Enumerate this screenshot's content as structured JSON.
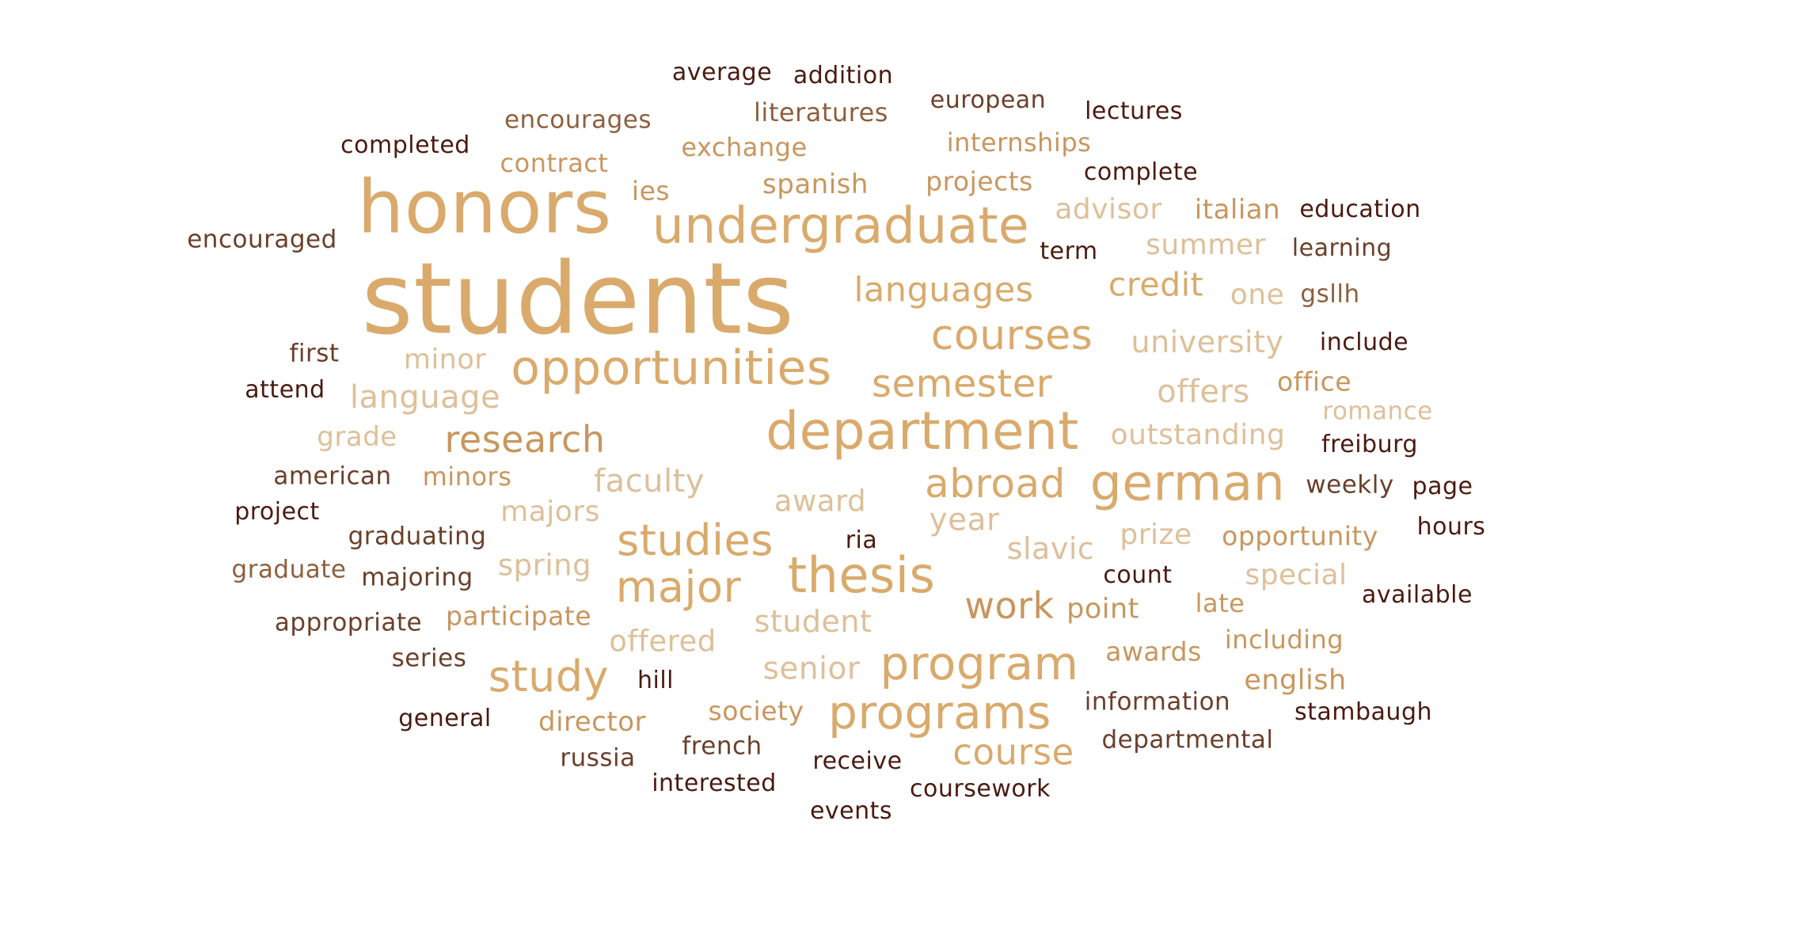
{
  "words": [
    "students",
    "honors",
    "undergraduate",
    "opportunities",
    "department",
    "german",
    "thesis",
    "studies",
    "major",
    "program",
    "programs",
    "study",
    "courses",
    "semester",
    "abroad",
    "research",
    "languages",
    "credit",
    "work",
    "course",
    "advisor",
    "summer",
    "university",
    "language",
    "offers",
    "outstanding",
    "faculty",
    "award",
    "year",
    "majors",
    "minor",
    "slavic",
    "prize",
    "spring",
    "student",
    "offered",
    "senior",
    "one",
    "special",
    "grade",
    "minors",
    "office",
    "romance",
    "opportunity",
    "italian",
    "exchange",
    "contract",
    "literatures",
    "internships",
    "spanish",
    "projects",
    "ies",
    "participate",
    "director",
    "society",
    "awards",
    "including",
    "english",
    "point",
    "late",
    "encourages",
    "american",
    "graduating",
    "graduate",
    "majoring",
    "appropriate",
    "series",
    "information",
    "departmental",
    "french",
    "russia",
    "gsllh",
    "weekly",
    "first",
    "encouraged",
    "average",
    "addition",
    "european",
    "lectures",
    "completed",
    "complete",
    "education",
    "term",
    "learning",
    "include",
    "attend",
    "freiburg",
    "page",
    "project",
    "hours",
    "ria",
    "count",
    "available",
    "hill",
    "general",
    "stambaugh",
    "receive",
    "interested",
    "coursework",
    "events"
  ],
  "colors": {
    "c1": "#d9aa6c",
    "c2": "#ddc09a",
    "c3": "#c8965e",
    "c4": "#8e5f3e",
    "c5": "#6a3f2a",
    "c6": "#4a1a10"
  }
}
